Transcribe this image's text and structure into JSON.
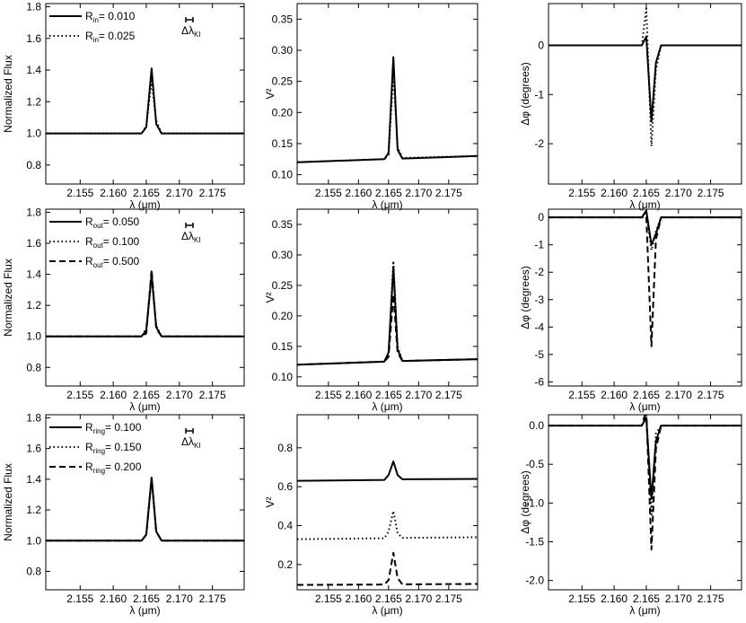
{
  "figure": {
    "rows": 3,
    "cols": 3
  },
  "chart_data": [
    {
      "type": "line",
      "id": "r1c1",
      "xlabel": "λ (μm)",
      "ylabel": "Normalized Flux",
      "xlim": [
        2.1498,
        2.1798
      ],
      "ylim": [
        0.68,
        1.82
      ],
      "xticks": [
        2.155,
        2.16,
        2.165,
        2.17,
        2.175
      ],
      "xtick_labels": [
        "2.155",
        "2.160",
        "2.165",
        "2.170",
        "2.175"
      ],
      "yticks": [
        0.8,
        1.0,
        1.2,
        1.4,
        1.6,
        1.8
      ],
      "ytick_labels": [
        "0.8",
        "1.0",
        "1.2",
        "1.4",
        "1.6",
        "1.8"
      ],
      "legend": [
        {
          "label": "R",
          "sub": "in",
          "value": "= 0.010",
          "style": "solid"
        },
        {
          "label": "R",
          "sub": "in",
          "value": "= 0.025",
          "style": "dotted"
        }
      ],
      "resolution_label": {
        "main": "Δλ",
        "sub": "KI"
      },
      "series": [
        {
          "name": "R_in = 0.010",
          "style": "solid",
          "x": [
            2.1498,
            2.1643,
            2.165,
            2.1658,
            2.1665,
            2.1673,
            2.1798
          ],
          "y": [
            1.0,
            1.0,
            1.04,
            1.41,
            1.06,
            1.0,
            1.0
          ]
        },
        {
          "name": "R_in = 0.025",
          "style": "dotted",
          "x": [
            2.1498,
            2.1643,
            2.165,
            2.1658,
            2.1665,
            2.1673,
            2.1798
          ],
          "y": [
            1.0,
            1.0,
            1.05,
            1.33,
            1.08,
            1.0,
            1.0
          ]
        }
      ]
    },
    {
      "type": "line",
      "id": "r1c2",
      "xlabel": "λ (μm)",
      "ylabel": "V²",
      "xlim": [
        2.1498,
        2.1798
      ],
      "ylim": [
        0.085,
        0.375
      ],
      "xticks": [
        2.155,
        2.16,
        2.165,
        2.17,
        2.175
      ],
      "xtick_labels": [
        "2.155",
        "2.160",
        "2.165",
        "2.170",
        "2.175"
      ],
      "yticks": [
        0.1,
        0.15,
        0.2,
        0.25,
        0.3,
        0.35
      ],
      "ytick_labels": [
        "0.10",
        "0.15",
        "0.20",
        "0.25",
        "0.30",
        "0.35"
      ],
      "series": [
        {
          "name": "R_in = 0.010",
          "style": "solid",
          "x": [
            2.1498,
            2.1643,
            2.165,
            2.1658,
            2.1665,
            2.1673,
            2.1798
          ],
          "y": [
            0.12,
            0.125,
            0.135,
            0.289,
            0.14,
            0.126,
            0.13
          ]
        },
        {
          "name": "R_in = 0.025",
          "style": "dotted",
          "x": [
            2.1498,
            2.1643,
            2.165,
            2.1658,
            2.1665,
            2.1673,
            2.1798
          ],
          "y": [
            0.12,
            0.125,
            0.132,
            0.262,
            0.145,
            0.127,
            0.13
          ]
        }
      ]
    },
    {
      "type": "line",
      "id": "r1c3",
      "xlabel": "λ (μm)",
      "ylabel": "Δφ (degrees)",
      "xlim": [
        2.1498,
        2.1798
      ],
      "ylim": [
        -2.82,
        0.85
      ],
      "xticks": [
        2.155,
        2.16,
        2.165,
        2.17,
        2.175
      ],
      "xtick_labels": [
        "2.155",
        "2.160",
        "2.165",
        "2.170",
        "2.175"
      ],
      "yticks": [
        -2,
        -1,
        0
      ],
      "ytick_labels": [
        "-2",
        "-1",
        "0"
      ],
      "series": [
        {
          "name": "R_in = 0.010",
          "style": "solid",
          "x": [
            2.1498,
            2.1643,
            2.165,
            2.1658,
            2.1665,
            2.1673,
            2.1798
          ],
          "y": [
            0.0,
            0.0,
            0.18,
            -1.55,
            -0.35,
            0.0,
            0.0
          ]
        },
        {
          "name": "R_in = 0.025",
          "style": "dotted",
          "x": [
            2.1498,
            2.1643,
            2.165,
            2.1658,
            2.1665,
            2.1673,
            2.1798
          ],
          "y": [
            0.0,
            0.0,
            0.75,
            -2.05,
            -0.5,
            0.0,
            0.0
          ]
        }
      ]
    },
    {
      "type": "line",
      "id": "r2c1",
      "xlabel": "λ (μm)",
      "ylabel": "Normalized Flux",
      "xlim": [
        2.1498,
        2.1798
      ],
      "ylim": [
        0.68,
        1.82
      ],
      "xticks": [
        2.155,
        2.16,
        2.165,
        2.17,
        2.175
      ],
      "xtick_labels": [
        "2.155",
        "2.160",
        "2.165",
        "2.170",
        "2.175"
      ],
      "yticks": [
        0.8,
        1.0,
        1.2,
        1.4,
        1.6,
        1.8
      ],
      "ytick_labels": [
        "0.8",
        "1.0",
        "1.2",
        "1.4",
        "1.6",
        "1.8"
      ],
      "legend": [
        {
          "label": "R",
          "sub": "out",
          "value": "= 0.050",
          "style": "solid"
        },
        {
          "label": "R",
          "sub": "out",
          "value": "= 0.100",
          "style": "dotted"
        },
        {
          "label": "R",
          "sub": "out",
          "value": "= 0.500",
          "style": "dashed"
        }
      ],
      "resolution_label": {
        "main": "Δλ",
        "sub": "KI"
      },
      "series": [
        {
          "name": "R_out = 0.050",
          "style": "solid",
          "x": [
            2.1498,
            2.1643,
            2.165,
            2.1658,
            2.1665,
            2.1673,
            2.1798
          ],
          "y": [
            1.0,
            1.0,
            1.04,
            1.4,
            1.06,
            1.0,
            1.0
          ]
        },
        {
          "name": "R_out = 0.100",
          "style": "dotted",
          "x": [
            2.1498,
            2.1643,
            2.165,
            2.1658,
            2.1665,
            2.1673,
            2.1798
          ],
          "y": [
            1.0,
            1.0,
            1.05,
            1.38,
            1.07,
            1.0,
            1.0
          ]
        },
        {
          "name": "R_out = 0.500",
          "style": "dashed",
          "x": [
            2.1498,
            2.1643,
            2.165,
            2.1658,
            2.1665,
            2.1673,
            2.1798
          ],
          "y": [
            1.0,
            1.0,
            1.02,
            1.43,
            1.05,
            1.0,
            1.0
          ]
        }
      ]
    },
    {
      "type": "line",
      "id": "r2c2",
      "xlabel": "λ (μm)",
      "ylabel": "V²",
      "xlim": [
        2.1498,
        2.1798
      ],
      "ylim": [
        0.085,
        0.375
      ],
      "xticks": [
        2.155,
        2.16,
        2.165,
        2.17,
        2.175
      ],
      "xtick_labels": [
        "2.155",
        "2.160",
        "2.165",
        "2.170",
        "2.175"
      ],
      "yticks": [
        0.1,
        0.15,
        0.2,
        0.25,
        0.3,
        0.35
      ],
      "ytick_labels": [
        "0.10",
        "0.15",
        "0.20",
        "0.25",
        "0.30",
        "0.35"
      ],
      "series": [
        {
          "name": "R_out = 0.050",
          "style": "solid",
          "x": [
            2.1498,
            2.1643,
            2.165,
            2.1658,
            2.1665,
            2.1673,
            2.1798
          ],
          "y": [
            0.12,
            0.125,
            0.14,
            0.28,
            0.145,
            0.126,
            0.129
          ]
        },
        {
          "name": "R_out = 0.100",
          "style": "dotted",
          "x": [
            2.1498,
            2.1643,
            2.165,
            2.1658,
            2.1665,
            2.1673,
            2.1798
          ],
          "y": [
            0.12,
            0.125,
            0.138,
            0.29,
            0.15,
            0.126,
            0.129
          ]
        },
        {
          "name": "R_out = 0.500",
          "style": "dashed",
          "x": [
            2.1498,
            2.1643,
            2.165,
            2.1658,
            2.1665,
            2.1673,
            2.1798
          ],
          "y": [
            0.12,
            0.125,
            0.133,
            0.235,
            0.14,
            0.126,
            0.129
          ]
        }
      ]
    },
    {
      "type": "line",
      "id": "r2c3",
      "xlabel": "λ (μm)",
      "ylabel": "Δφ (degrees)",
      "xlim": [
        2.1498,
        2.1798
      ],
      "ylim": [
        -6.15,
        0.3
      ],
      "xticks": [
        2.155,
        2.16,
        2.165,
        2.17,
        2.175
      ],
      "xtick_labels": [
        "2.155",
        "2.160",
        "2.165",
        "2.170",
        "2.175"
      ],
      "yticks": [
        -6,
        -5,
        -4,
        -3,
        -2,
        -1,
        0
      ],
      "ytick_labels": [
        "-6",
        "-5",
        "-4",
        "-3",
        "-2",
        "-1",
        "0"
      ],
      "series": [
        {
          "name": "R_out = 0.050",
          "style": "solid",
          "x": [
            2.1498,
            2.1643,
            2.165,
            2.1658,
            2.1665,
            2.1673,
            2.1798
          ],
          "y": [
            0.0,
            0.0,
            0.25,
            -1.0,
            -0.6,
            0.0,
            0.0
          ]
        },
        {
          "name": "R_out = 0.100",
          "style": "dotted",
          "x": [
            2.1498,
            2.1643,
            2.165,
            2.1658,
            2.1665,
            2.1673,
            2.1798
          ],
          "y": [
            0.0,
            0.0,
            0.2,
            -1.2,
            -0.5,
            0.0,
            0.0
          ]
        },
        {
          "name": "R_out = 0.500",
          "style": "dashed",
          "x": [
            2.1498,
            2.1643,
            2.165,
            2.1658,
            2.1665,
            2.1673,
            2.1798
          ],
          "y": [
            0.0,
            0.0,
            0.05,
            -4.7,
            -0.8,
            0.0,
            0.0
          ]
        }
      ]
    },
    {
      "type": "line",
      "id": "r3c1",
      "xlabel": "λ (μm)",
      "ylabel": "Normalized Flux",
      "xlim": [
        2.1498,
        2.1798
      ],
      "ylim": [
        0.68,
        1.82
      ],
      "xticks": [
        2.155,
        2.16,
        2.165,
        2.17,
        2.175
      ],
      "xtick_labels": [
        "2.155",
        "2.160",
        "2.165",
        "2.170",
        "2.175"
      ],
      "yticks": [
        0.8,
        1.0,
        1.2,
        1.4,
        1.6,
        1.8
      ],
      "ytick_labels": [
        "0.8",
        "1.0",
        "1.2",
        "1.4",
        "1.6",
        "1.8"
      ],
      "legend": [
        {
          "label": "R",
          "sub": "ring",
          "value": "= 0.100",
          "style": "solid"
        },
        {
          "label": "R",
          "sub": "ring",
          "value": "= 0.150",
          "style": "dotted"
        },
        {
          "label": "R",
          "sub": "ring",
          "value": "= 0.200",
          "style": "dashed"
        }
      ],
      "resolution_label": {
        "main": "Δλ",
        "sub": "KI"
      },
      "series": [
        {
          "name": "R_ring = 0.100",
          "style": "solid",
          "x": [
            2.1498,
            2.1643,
            2.165,
            2.1658,
            2.1665,
            2.1673,
            2.1798
          ],
          "y": [
            1.0,
            1.0,
            1.04,
            1.41,
            1.06,
            1.0,
            1.0
          ]
        },
        {
          "name": "R_ring = 0.150",
          "style": "dotted",
          "x": [
            2.1498,
            2.1643,
            2.165,
            2.1658,
            2.1665,
            2.1673,
            2.1798
          ],
          "y": [
            1.0,
            1.0,
            1.04,
            1.41,
            1.06,
            1.0,
            1.0
          ]
        },
        {
          "name": "R_ring = 0.200",
          "style": "dashed",
          "x": [
            2.1498,
            2.1643,
            2.165,
            2.1658,
            2.1665,
            2.1673,
            2.1798
          ],
          "y": [
            1.0,
            1.0,
            1.04,
            1.41,
            1.06,
            1.0,
            1.0
          ]
        }
      ]
    },
    {
      "type": "line",
      "id": "r3c2",
      "xlabel": "λ (μm)",
      "ylabel": "V²",
      "xlim": [
        2.1498,
        2.1798
      ],
      "ylim": [
        0.07,
        0.97
      ],
      "xticks": [
        2.155,
        2.16,
        2.165,
        2.17,
        2.175
      ],
      "xtick_labels": [
        "2.155",
        "2.160",
        "2.165",
        "2.170",
        "2.175"
      ],
      "yticks": [
        0.2,
        0.4,
        0.6,
        0.8
      ],
      "ytick_labels": [
        "0.2",
        "0.4",
        "0.6",
        "0.8"
      ],
      "series": [
        {
          "name": "R_ring = 0.100",
          "style": "solid",
          "x": [
            2.1498,
            2.1643,
            2.165,
            2.1658,
            2.1665,
            2.1673,
            2.1798
          ],
          "y": [
            0.63,
            0.635,
            0.66,
            0.73,
            0.66,
            0.638,
            0.64
          ]
        },
        {
          "name": "R_ring = 0.150",
          "style": "dotted",
          "x": [
            2.1498,
            2.1643,
            2.165,
            2.1658,
            2.1665,
            2.1673,
            2.1798
          ],
          "y": [
            0.33,
            0.335,
            0.37,
            0.475,
            0.36,
            0.337,
            0.34
          ]
        },
        {
          "name": "R_ring = 0.200",
          "style": "dashed",
          "x": [
            2.1498,
            2.1643,
            2.165,
            2.1658,
            2.1665,
            2.1673,
            2.1798
          ],
          "y": [
            0.095,
            0.097,
            0.12,
            0.26,
            0.13,
            0.098,
            0.1
          ]
        }
      ]
    },
    {
      "type": "line",
      "id": "r3c3",
      "xlabel": "λ (μm)",
      "ylabel": "Δφ (degrees)",
      "xlim": [
        2.1498,
        2.1798
      ],
      "ylim": [
        -2.12,
        0.14
      ],
      "xticks": [
        2.155,
        2.16,
        2.165,
        2.17,
        2.175
      ],
      "xtick_labels": [
        "2.155",
        "2.160",
        "2.165",
        "2.170",
        "2.175"
      ],
      "yticks": [
        -2.0,
        -1.5,
        -1.0,
        -0.5,
        0.0
      ],
      "ytick_labels": [
        "-2.0",
        "-1.5",
        "-1.0",
        "-0.5",
        "0.0"
      ],
      "series": [
        {
          "name": "R_ring = 0.100",
          "style": "solid",
          "x": [
            2.1498,
            2.1643,
            2.165,
            2.1658,
            2.1665,
            2.1673,
            2.1798
          ],
          "y": [
            0.0,
            0.0,
            0.1,
            -0.95,
            -0.2,
            0.0,
            0.0
          ]
        },
        {
          "name": "R_ring = 0.150",
          "style": "dotted",
          "x": [
            2.1498,
            2.1643,
            2.165,
            2.1658,
            2.1665,
            2.1673,
            2.1798
          ],
          "y": [
            0.0,
            0.0,
            0.12,
            -1.15,
            -0.1,
            0.0,
            0.0
          ]
        },
        {
          "name": "R_ring = 0.200",
          "style": "dashed",
          "x": [
            2.1498,
            2.1643,
            2.165,
            2.1658,
            2.1665,
            2.1673,
            2.1798
          ],
          "y": [
            0.0,
            0.0,
            0.2,
            -1.6,
            -0.3,
            0.0,
            0.0
          ]
        }
      ]
    }
  ]
}
